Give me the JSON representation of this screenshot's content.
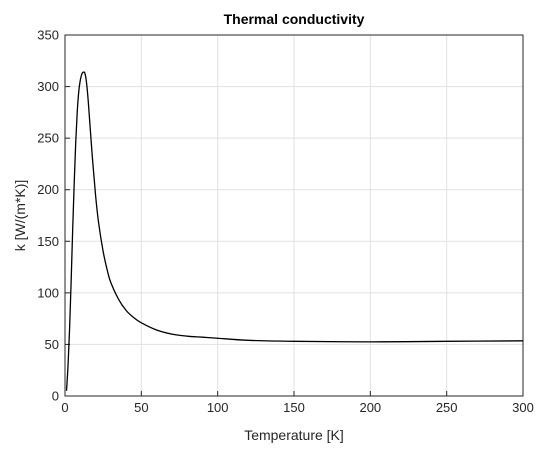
{
  "chart_data": {
    "type": "line",
    "title": "Thermal conductivity",
    "xlabel": "Temperature [K]",
    "ylabel": "k [W/(m*K)]",
    "xlim": [
      0,
      300
    ],
    "ylim": [
      0,
      350
    ],
    "xticks": [
      0,
      50,
      100,
      150,
      200,
      250,
      300
    ],
    "yticks": [
      0,
      50,
      100,
      150,
      200,
      250,
      300,
      350
    ],
    "grid": true,
    "series_color": "#000000",
    "series": [
      {
        "x": [
          1,
          2,
          3,
          4,
          5,
          6,
          7,
          8,
          9,
          10,
          11,
          12,
          13,
          14,
          15,
          16,
          18,
          20,
          22,
          25,
          28,
          30,
          35,
          40,
          45,
          50,
          60,
          70,
          80,
          90,
          100,
          120,
          150,
          200,
          250,
          300
        ],
        "y": [
          5,
          30,
          65,
          110,
          160,
          205,
          245,
          275,
          295,
          306,
          312,
          314,
          313,
          305,
          290,
          270,
          230,
          195,
          168,
          140,
          120,
          110,
          94,
          83,
          76,
          71,
          64,
          60,
          58,
          57,
          56,
          54,
          53,
          52.5,
          53,
          53.5
        ]
      }
    ]
  }
}
